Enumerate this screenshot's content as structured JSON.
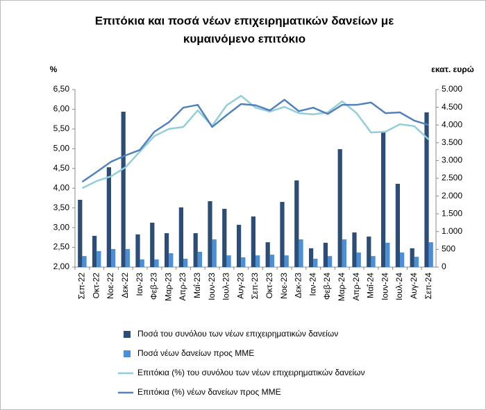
{
  "chart_data": {
    "type": "combo",
    "title": [
      "Επιτόκια και ποσά νέων επιχειρηματικών δανείων με",
      "κυμαινόμενο επιτόκιο"
    ],
    "y_label": "%",
    "y2_label": "εκατ. ευρώ",
    "categories": [
      "Σεπ-22",
      "Οκτ-22",
      "Νοε-22",
      "Δεκ-22",
      "Ιαν-23",
      "Φεβ-23",
      "Μαρ-23",
      "Απρ-23",
      "Μαΐ-23",
      "Ιουν-23",
      "Ιουλ-23",
      "Αυγ-23",
      "Σεπ-23",
      "Οκτ-23",
      "Νοε-23",
      "Δεκ-23",
      "Ιαν-24",
      "Φεβ-24",
      "Μαρ-24",
      "Απρ-24",
      "Μαΐ-24",
      "Ιουν-24",
      "Ιουλ-24",
      "Αυγ-24",
      "Σεπ-24"
    ],
    "series": [
      {
        "name": "Ποσά του συνόλου των νέων επιχειρηματικών δανείων",
        "type": "bar",
        "axis": "y2",
        "color": "#2c4d75",
        "values": [
          1895,
          880,
          2810,
          4375,
          920,
          1250,
          955,
          1680,
          955,
          1855,
          1640,
          1190,
          1425,
          700,
          1835,
          2440,
          530,
          685,
          3320,
          975,
          860,
          3790,
          2345,
          530,
          4355
        ]
      },
      {
        "name": "Ποσά νέων δανείων προς ΜΜΕ",
        "type": "bar",
        "axis": "y2",
        "color": "#4a8fd8",
        "values": [
          310,
          450,
          510,
          510,
          215,
          215,
          390,
          235,
          430,
          780,
          330,
          275,
          330,
          350,
          330,
          780,
          235,
          310,
          780,
          410,
          310,
          685,
          410,
          290,
          700
        ]
      },
      {
        "name": "Επιτόκια (%) του συνόλου των νέων επιχειρηματικών δανείων",
        "type": "line",
        "color": "#92cddc",
        "values": [
          4.0,
          4.18,
          4.3,
          4.53,
          4.93,
          5.32,
          5.5,
          5.55,
          5.97,
          5.58,
          6.1,
          6.34,
          6.04,
          5.94,
          6.06,
          5.9,
          5.87,
          5.92,
          6.2,
          5.9,
          5.41,
          5.43,
          5.62,
          5.57,
          5.23
        ]
      },
      {
        "name": "Επιτόκια (%) νέων δανείων προς ΜΜΕ",
        "type": "line",
        "color": "#4f81bd",
        "values": [
          4.16,
          4.41,
          4.67,
          4.83,
          4.97,
          5.43,
          5.67,
          6.04,
          6.11,
          5.55,
          5.85,
          6.13,
          6.1,
          5.97,
          6.24,
          5.95,
          6.04,
          5.88,
          6.11,
          6.11,
          6.17,
          5.9,
          5.92,
          5.71,
          5.6
        ]
      }
    ],
    "ylim": [
      2.0,
      6.5
    ],
    "yticks": [
      {
        "value": 2.0,
        "label": "2,00"
      },
      {
        "value": 2.5,
        "label": "2,50"
      },
      {
        "value": 3.0,
        "label": "3,00"
      },
      {
        "value": 3.5,
        "label": "3,50"
      },
      {
        "value": 4.0,
        "label": "4,00"
      },
      {
        "value": 4.5,
        "label": "4,50"
      },
      {
        "value": 5.0,
        "label": "5,00"
      },
      {
        "value": 5.5,
        "label": "5,50"
      },
      {
        "value": 6.0,
        "label": "6,00"
      },
      {
        "value": 6.5,
        "label": "6,50"
      }
    ],
    "y2lim": [
      0,
      5000
    ],
    "y2ticks": [
      0,
      {
        "value": 500,
        "label": "500"
      },
      {
        "value": 1000,
        "label": "1.000"
      },
      {
        "value": 1500,
        "label": "1.500"
      },
      {
        "value": 2000,
        "label": "2.000"
      },
      {
        "value": 2500,
        "label": "2.500"
      },
      {
        "value": 3000,
        "label": "3.000"
      },
      {
        "value": 3500,
        "label": "3.500"
      },
      {
        "value": 4000,
        "label": "4.000"
      },
      {
        "value": 4500,
        "label": "4.500"
      },
      {
        "value": 5000,
        "label": "5.000"
      }
    ],
    "grid": false
  }
}
